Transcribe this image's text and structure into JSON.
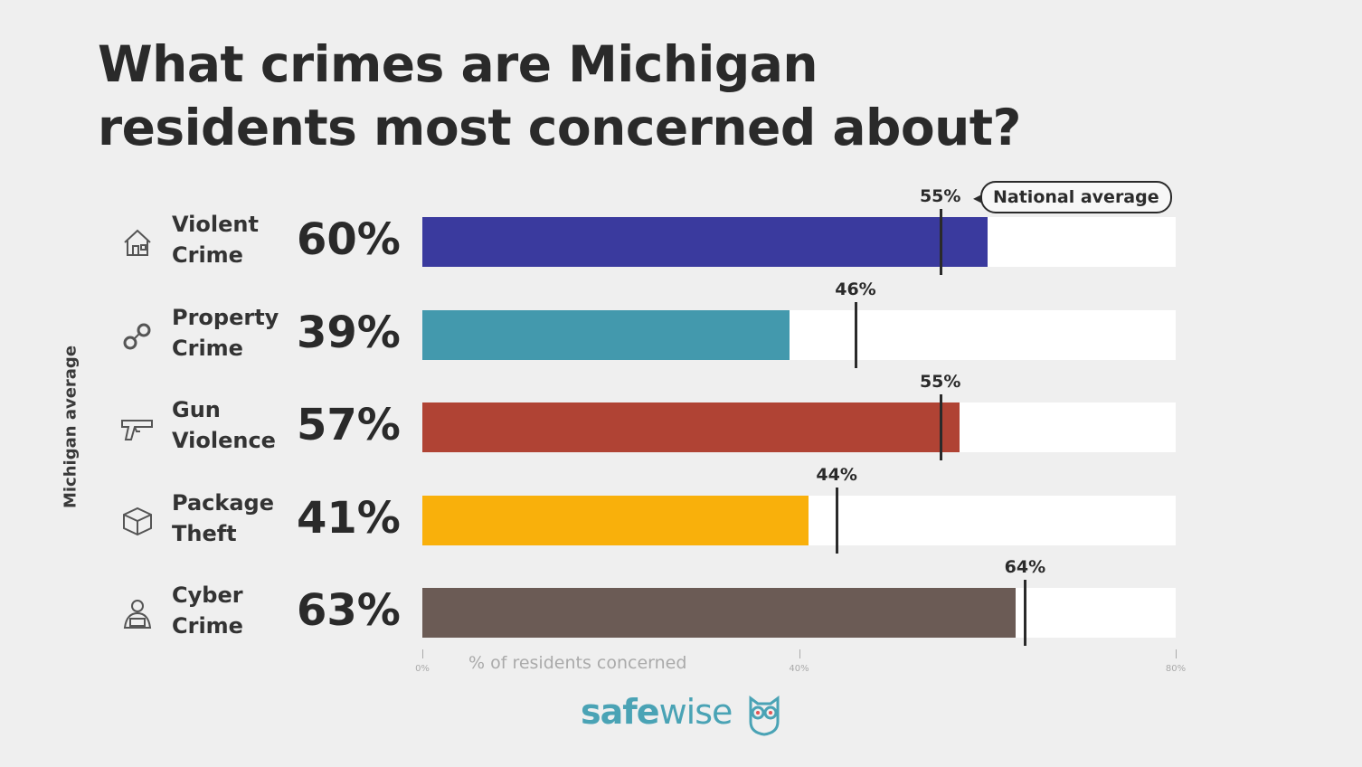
{
  "title_line1": "What crimes are Michigan",
  "title_line2": "residents most concerned about?",
  "chart_data": {
    "type": "bar",
    "orientation": "horizontal",
    "title": "What crimes are Michigan residents most concerned about?",
    "ylabel": "Michigan average",
    "xlabel": "% of residents concerned",
    "xlim": [
      0,
      80
    ],
    "xticks": [
      "0%",
      "40%",
      "80%"
    ],
    "xtick_values": [
      0,
      40,
      80
    ],
    "categories": [
      "Violent Crime",
      "Property Crime",
      "Gun Violence",
      "Package Theft",
      "Cyber Crime"
    ],
    "category_lines": [
      [
        "Violent",
        "Crime"
      ],
      [
        "Property",
        "Crime"
      ],
      [
        "Gun",
        "Violence"
      ],
      [
        "Package",
        "Theft"
      ],
      [
        "Cyber",
        "Crime"
      ]
    ],
    "icons": [
      "house-icon",
      "handcuffs-icon",
      "gun-icon",
      "package-icon",
      "hacker-icon"
    ],
    "series": [
      {
        "name": "Michigan average",
        "values": [
          60,
          39,
          57,
          41,
          63
        ],
        "labels": [
          "60%",
          "39%",
          "57%",
          "41%",
          "63%"
        ],
        "colors": [
          "#3a3a9e",
          "#4399ad",
          "#b04334",
          "#f9b00b",
          "#6b5b55"
        ]
      },
      {
        "name": "National average",
        "values": [
          55,
          46,
          55,
          44,
          64
        ],
        "labels": [
          "55%",
          "46%",
          "55%",
          "44%",
          "64%"
        ]
      }
    ],
    "legend": "National average"
  },
  "logo": {
    "bold": "safe",
    "light": "wise"
  }
}
